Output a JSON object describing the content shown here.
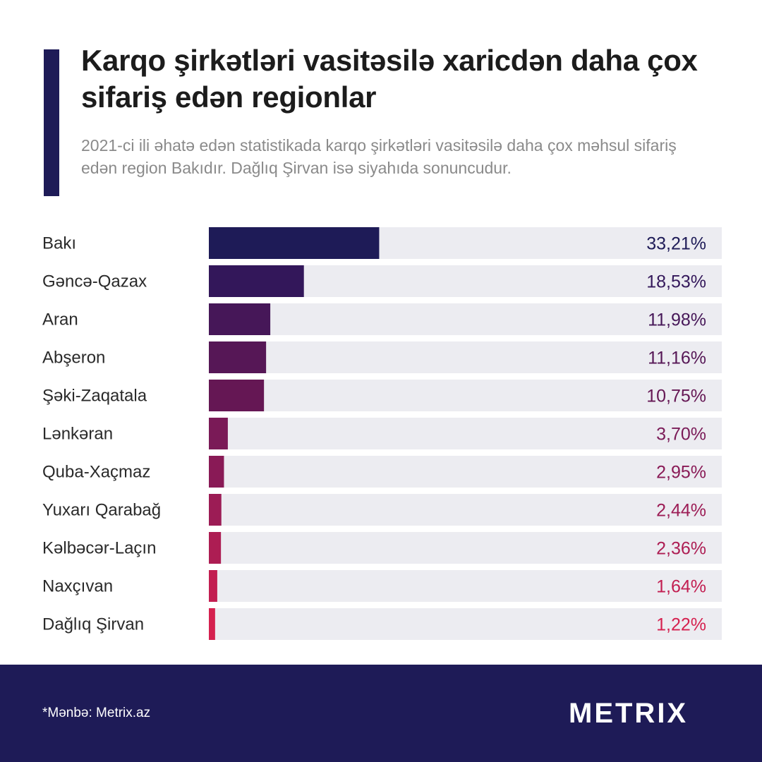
{
  "title": "Karqo şirkətləri vasitəsilə xaricdən daha çox sifariş edən regionlar",
  "subtitle": "2021-ci ili əhatə edən statistikada karqo şirkətləri vasitəsilə daha çox məhsul sifariş edən region Bakıdır. Dağlıq Şirvan isə siyahıda sonuncudur.",
  "footer": {
    "source": "*Mənbə: Metrix.az",
    "logo_text": "METRIX"
  },
  "colors": {
    "brand_navy": "#1e1b57",
    "track": "#ececf1",
    "logo_green": "#2fb65a",
    "logo_red": "#e8364f"
  },
  "chart_data": {
    "type": "bar",
    "orientation": "horizontal",
    "unit": "%",
    "xlim": [
      0,
      100
    ],
    "categories": [
      "Bakı",
      "Gəncə-Qazax",
      "Aran",
      "Abşeron",
      "Şəki-Zaqatala",
      "Lənkəran",
      "Quba-Xaçmaz",
      "Yuxarı Qarabağ",
      "Kəlbəcər-Laçın",
      "Naxçıvan",
      "Dağlıq Şirvan"
    ],
    "values": [
      33.21,
      18.53,
      11.98,
      11.16,
      10.75,
      3.7,
      2.95,
      2.44,
      2.36,
      1.64,
      1.22
    ],
    "value_labels": [
      "33,21%",
      "18,53%",
      "11,98%",
      "11,16%",
      "10,75%",
      "3,70%",
      "2,95%",
      "2,44%",
      "2,36%",
      "1,64%",
      "1,22%"
    ],
    "bar_colors": [
      "#1e1b57",
      "#33175a",
      "#461758",
      "#561756",
      "#651754",
      "#7a1a57",
      "#891a56",
      "#9c1c55",
      "#ad1d53",
      "#c21e51",
      "#d5214f"
    ]
  }
}
